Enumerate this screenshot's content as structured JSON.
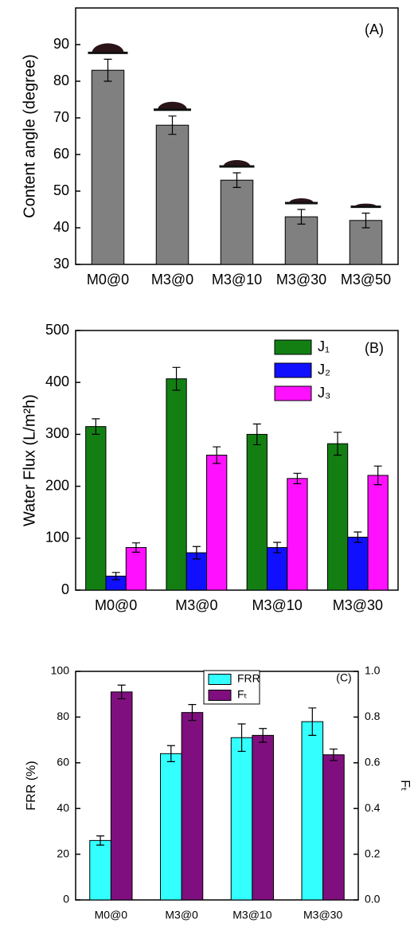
{
  "chart_data": [
    {
      "type": "bar",
      "label": "(A)",
      "y_label": "Content angle (degree)",
      "categories": [
        "M0@0",
        "M3@0",
        "M3@10",
        "M3@30",
        "M3@50"
      ],
      "values": [
        83,
        68,
        53,
        43,
        42
      ],
      "errors": [
        3,
        2.5,
        2,
        2,
        2
      ],
      "color": "#808080",
      "ylim": [
        30,
        100
      ],
      "yticks": [
        30,
        40,
        50,
        60,
        70,
        80,
        90
      ]
    },
    {
      "type": "bar",
      "label": "(B)",
      "y_label": "Water Flux (L/m²h)",
      "categories": [
        "M0@0",
        "M3@0",
        "M3@10",
        "M3@30"
      ],
      "series": [
        {
          "name": "J₁",
          "color": "#137f13",
          "values": [
            315,
            407,
            300,
            282
          ],
          "errors": [
            15,
            22,
            20,
            22
          ]
        },
        {
          "name": "J₂",
          "color": "#1010ff",
          "values": [
            27,
            72,
            82,
            102
          ],
          "errors": [
            7,
            12,
            10,
            10
          ]
        },
        {
          "name": "J₃",
          "color": "#ff10ff",
          "values": [
            82,
            260,
            215,
            221
          ],
          "errors": [
            9,
            16,
            10,
            18
          ]
        }
      ],
      "ylim": [
        0,
        500
      ],
      "yticks": [
        0,
        100,
        200,
        300,
        400,
        500
      ]
    },
    {
      "type": "bar",
      "label": "(C)",
      "y_label": "FRR (%)",
      "y2_label": "Fₜ",
      "categories": [
        "M0@0",
        "M3@0",
        "M3@10",
        "M3@30"
      ],
      "series": [
        {
          "name": "FRR",
          "color": "#33ffff",
          "values": [
            26,
            64,
            71,
            78
          ],
          "errors": [
            2,
            3.5,
            6,
            6
          ]
        },
        {
          "name": "Fₜ",
          "color": "#7f0f7f",
          "axis": "y2",
          "values": [
            0.91,
            0.82,
            0.72,
            0.635
          ],
          "errors": [
            0.03,
            0.035,
            0.03,
            0.025
          ]
        }
      ],
      "ylim": [
        0,
        100
      ],
      "yticks": [
        0,
        20,
        40,
        60,
        80,
        100
      ],
      "y2lim": [
        0,
        1.0
      ],
      "y2ticks": [
        {
          "value": 0,
          "label": "0.0"
        },
        0.2,
        0.4,
        0.6,
        0.8,
        {
          "value": 1,
          "label": "1.0"
        }
      ]
    }
  ]
}
